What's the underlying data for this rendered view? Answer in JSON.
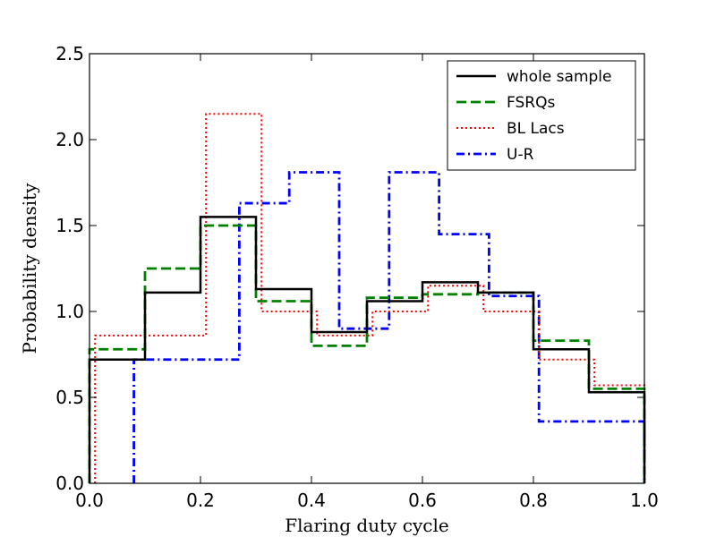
{
  "chart_data": {
    "type": "histogram-step",
    "title": "",
    "xlabel": "Flaring duty cycle",
    "ylabel": "Probability density",
    "xlim": [
      0.0,
      1.0
    ],
    "ylim": [
      0.0,
      2.5
    ],
    "xticks": [
      0.0,
      0.2,
      0.4,
      0.6,
      0.8,
      1.0
    ],
    "yticks": [
      0.0,
      0.5,
      1.0,
      1.5,
      2.0,
      2.5
    ],
    "xtick_labels": [
      "0.0",
      "0.2",
      "0.4",
      "0.6",
      "0.8",
      "1.0"
    ],
    "ytick_labels": [
      "0.0",
      "0.5",
      "1.0",
      "1.5",
      "2.0",
      "2.5"
    ],
    "grid": false,
    "legend_position": "top-right",
    "series": [
      {
        "name": "whole sample",
        "color": "#000000",
        "style": "solid",
        "edges": [
          0.0,
          0.1,
          0.2,
          0.3,
          0.4,
          0.5,
          0.6,
          0.7,
          0.8,
          0.9,
          1.0
        ],
        "values": [
          0.72,
          1.11,
          1.55,
          1.13,
          0.88,
          1.06,
          1.17,
          1.11,
          0.78,
          0.53
        ]
      },
      {
        "name": "FSRQs",
        "color": "#008000",
        "style": "dashed",
        "edges": [
          0.0,
          0.1,
          0.2,
          0.3,
          0.4,
          0.5,
          0.6,
          0.7,
          0.8,
          0.9,
          1.0
        ],
        "values": [
          0.78,
          1.25,
          1.5,
          1.06,
          0.8,
          1.08,
          1.1,
          1.11,
          0.83,
          0.55
        ]
      },
      {
        "name": "BL Lacs",
        "color": "#ff0000",
        "style": "dotted",
        "edges": [
          0.01,
          0.21,
          0.31,
          0.41,
          0.51,
          0.61,
          0.71,
          0.81,
          0.91,
          1.0
        ],
        "values": [
          0.86,
          2.15,
          1.0,
          0.86,
          1.0,
          1.15,
          1.0,
          0.72,
          0.57
        ]
      },
      {
        "name": "U-R",
        "color": "#0000ff",
        "style": "dashdot",
        "edges": [
          0.08,
          0.27,
          0.36,
          0.45,
          0.54,
          0.63,
          0.72,
          0.81,
          1.0
        ],
        "values": [
          0.72,
          1.63,
          1.81,
          0.9,
          1.81,
          1.45,
          1.09,
          0.36
        ]
      }
    ]
  }
}
